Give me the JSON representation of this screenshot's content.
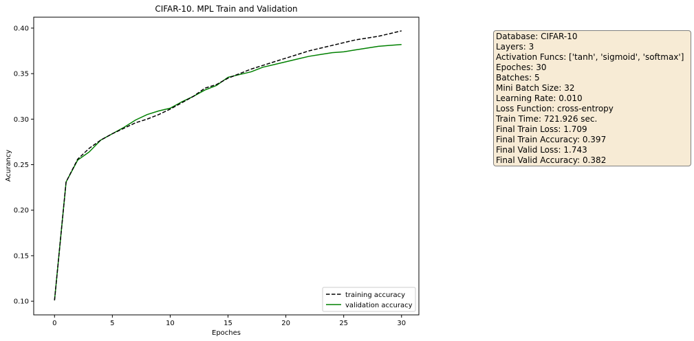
{
  "chart_data": {
    "type": "line",
    "title": "CIFAR-10. MPL Train and Validation",
    "xlabel": "Epoches",
    "ylabel": "Acurancy",
    "xlim": [
      -1.8,
      31.5
    ],
    "ylim": [
      0.085,
      0.412
    ],
    "xticks": [
      0,
      5,
      10,
      15,
      20,
      25,
      30
    ],
    "yticks": [
      0.1,
      0.15,
      0.2,
      0.25,
      0.3,
      0.35,
      0.4
    ],
    "grid": false,
    "legend_position": "lower-right",
    "x": [
      0,
      1,
      2,
      3,
      4,
      5,
      6,
      7,
      8,
      9,
      10,
      11,
      12,
      13,
      14,
      15,
      16,
      17,
      18,
      19,
      20,
      21,
      22,
      23,
      24,
      25,
      26,
      27,
      28,
      29,
      30
    ],
    "series": [
      {
        "name": "training accuracy",
        "color": "#000000",
        "style": "dashed",
        "values": [
          0.101,
          0.231,
          0.256,
          0.268,
          0.277,
          0.284,
          0.29,
          0.296,
          0.3,
          0.305,
          0.311,
          0.318,
          0.325,
          0.334,
          0.338,
          0.345,
          0.35,
          0.355,
          0.359,
          0.363,
          0.367,
          0.371,
          0.375,
          0.378,
          0.381,
          0.384,
          0.387,
          0.389,
          0.391,
          0.394,
          0.397
        ]
      },
      {
        "name": "validation accuracy",
        "color": "#008000",
        "style": "solid",
        "values": [
          0.101,
          0.231,
          0.255,
          0.264,
          0.277,
          0.284,
          0.291,
          0.299,
          0.305,
          0.309,
          0.312,
          0.319,
          0.325,
          0.332,
          0.337,
          0.346,
          0.349,
          0.352,
          0.357,
          0.36,
          0.363,
          0.366,
          0.369,
          0.371,
          0.373,
          0.374,
          0.376,
          0.378,
          0.38,
          0.381,
          0.382
        ]
      }
    ]
  },
  "info_box": {
    "background": "#f7ebd5",
    "lines": [
      "Database: CIFAR-10",
      "Layers: 3",
      "Activation Funcs: ['tanh', 'sigmoid', 'softmax']",
      "Epoches: 30",
      "Batches: 5",
      "Mini Batch Size: 32",
      "Learning Rate: 0.010",
      "Loss Function: cross-entropy",
      "Train Time: 721.926 sec.",
      "Final Train Loss: 1.709",
      "Final Train Accuracy: 0.397",
      "Final Valid Loss: 1.743",
      "Final Valid Accuracy: 0.382"
    ]
  }
}
